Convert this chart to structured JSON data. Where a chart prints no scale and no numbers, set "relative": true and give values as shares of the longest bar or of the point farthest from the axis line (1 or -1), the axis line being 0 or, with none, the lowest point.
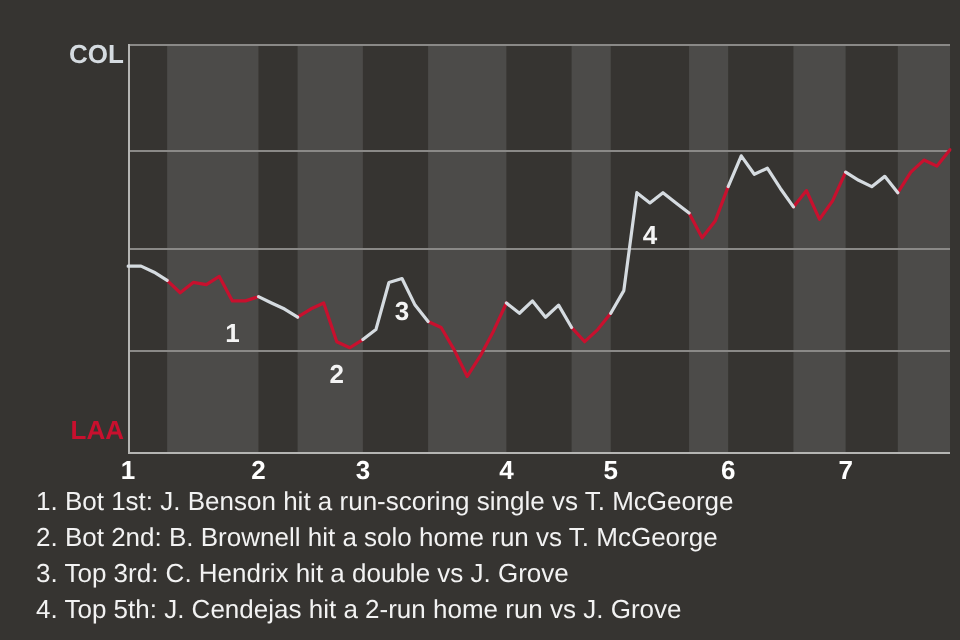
{
  "chart_data": {
    "type": "line",
    "relative": true,
    "categories": [
      "1",
      null,
      null,
      null,
      null,
      null,
      null,
      null,
      null,
      null,
      "2",
      null,
      null,
      null,
      null,
      null,
      null,
      null,
      "3",
      null,
      null,
      null,
      null,
      null,
      null,
      null,
      null,
      null,
      null,
      "4",
      null,
      null,
      null,
      null,
      null,
      null,
      null,
      "5",
      null,
      null,
      null,
      null,
      null,
      null,
      null,
      null,
      "6",
      null,
      null,
      null,
      null,
      null,
      null,
      null,
      null,
      "7",
      null,
      null,
      null,
      null,
      null,
      null,
      null,
      null
    ],
    "series": [
      {
        "name": "COL",
        "color": "#d5dbe0",
        "values": [
          0.615,
          0.615,
          0.595,
          0.568,
          null,
          null,
          null,
          null,
          null,
          null,
          0.514,
          0.493,
          0.473,
          0.446,
          null,
          null,
          null,
          null,
          0.372,
          0.405,
          0.561,
          0.574,
          0.486,
          0.432,
          null,
          null,
          null,
          null,
          null,
          0.493,
          0.459,
          0.5,
          0.446,
          0.486,
          0.412,
          null,
          null,
          0.459,
          0.534,
          0.858,
          0.824,
          0.858,
          0.824,
          0.791,
          null,
          null,
          0.878,
          0.98,
          0.919,
          0.939,
          0.872,
          0.811,
          null,
          null,
          null,
          0.926,
          0.899,
          0.878,
          0.912,
          0.858,
          null,
          null,
          null,
          null
        ]
      },
      {
        "name": "LAA",
        "color": "#c8102e",
        "values": [
          null,
          null,
          null,
          0.568,
          0.527,
          0.561,
          0.554,
          0.581,
          0.5,
          0.5,
          0.514,
          null,
          null,
          0.446,
          0.473,
          0.493,
          0.365,
          0.345,
          0.372,
          null,
          null,
          null,
          null,
          0.432,
          0.412,
          0.338,
          0.25,
          0.318,
          0.399,
          0.493,
          null,
          null,
          null,
          null,
          0.412,
          0.365,
          0.405,
          0.459,
          null,
          null,
          null,
          null,
          null,
          0.791,
          0.709,
          0.764,
          0.878,
          null,
          null,
          null,
          null,
          0.811,
          0.865,
          0.77,
          0.831,
          0.926,
          null,
          null,
          null,
          0.858,
          0.926,
          0.966,
          0.946,
          1
        ]
      }
    ],
    "ref_lines": [
      {
        "axis": "y",
        "value": 0.338,
        "color": "#8a8987"
      },
      {
        "axis": "y",
        "value": 0.676,
        "color": "#8a8987"
      },
      {
        "axis": "y",
        "value": 1.0,
        "color": "#8a8987"
      }
    ],
    "legend": false,
    "marker": "none",
    "line_style": "solid",
    "annotations": [
      {
        "text": "1",
        "y": 0.5
      },
      {
        "text": "2",
        "y": 0.365
      },
      {
        "text": "3",
        "y": 0.574
      },
      {
        "text": "4",
        "y": 0.824
      },
      "1. Bot 1st: J. Benson hit a run-scoring single vs T. McGeorge",
      "2. Bot 2nd: B. Brownell hit a solo home run vs T. McGeorge",
      "3. Top 3rd: C. Hendrix hit a double vs J. Grove",
      "4. Top 5th: J. Cendejas hit a 2-run home run vs J. Grove"
    ]
  }
}
